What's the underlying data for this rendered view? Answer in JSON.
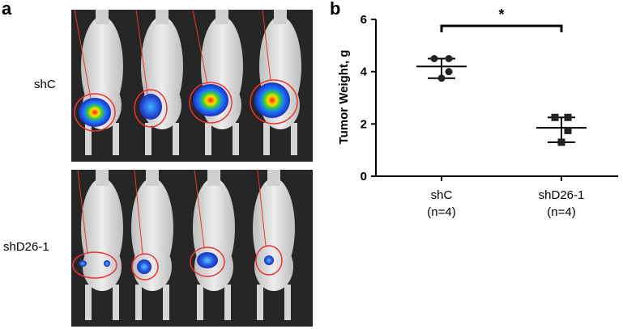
{
  "panels": {
    "a_label": "a",
    "b_label": "b"
  },
  "image_panel": {
    "row_labels": [
      "shC",
      "shD26-1"
    ],
    "mice_per_row": 4
  },
  "chart_data": {
    "type": "scatter",
    "title": "",
    "xlabel": "",
    "ylabel": "Tumor Weight, g",
    "ylim": [
      0,
      6
    ],
    "yticks": [
      "0",
      "2",
      "4",
      "6"
    ],
    "categories": [
      {
        "line1": "shC",
        "line2": "(n=4)"
      },
      {
        "line1": "shD26-1",
        "line2": "(n=4)"
      }
    ],
    "series": [
      {
        "marker": "circle",
        "values": [
          4.5,
          4.5,
          4.0,
          3.75
        ],
        "mean": 4.2,
        "sd_low": 3.75,
        "sd_high": 4.5
      },
      {
        "marker": "square",
        "values": [
          2.25,
          2.25,
          1.75,
          1.3
        ],
        "mean": 1.85,
        "sd_low": 1.3,
        "sd_high": 2.25
      }
    ],
    "significance": "*",
    "grid": false
  }
}
